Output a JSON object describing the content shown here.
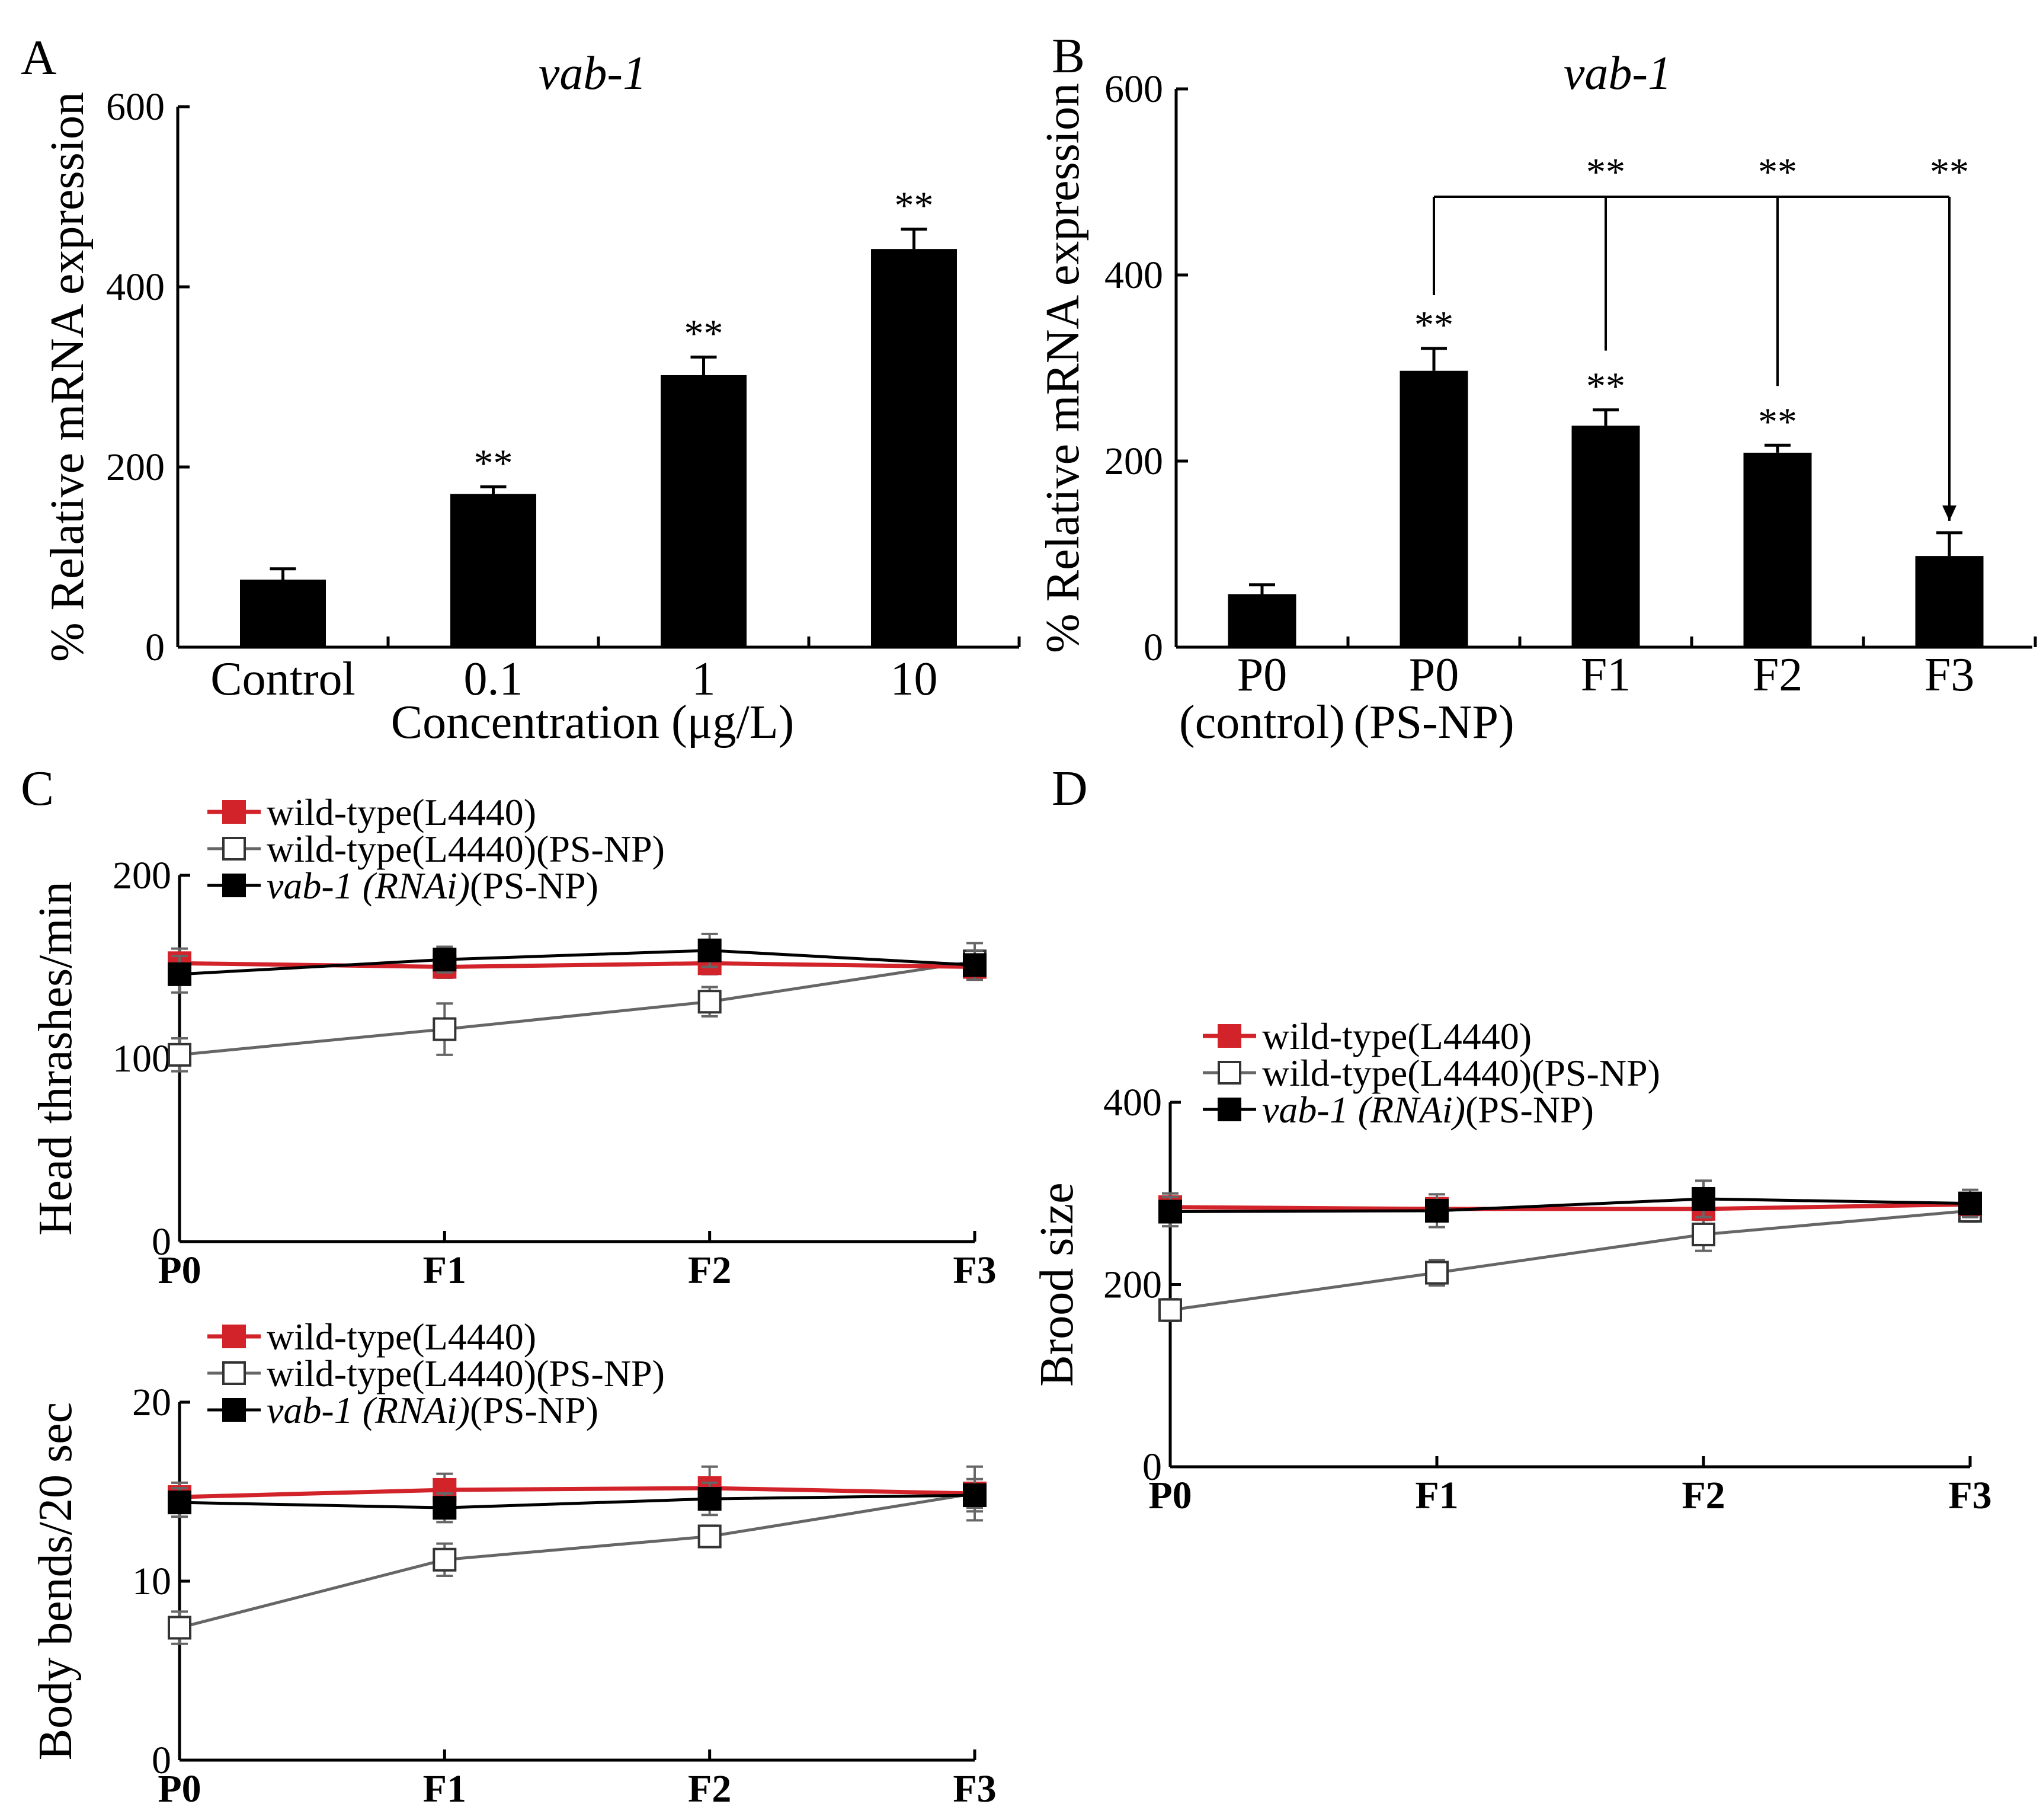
{
  "figure": {
    "panel_labels": [
      "A",
      "B",
      "C",
      "D"
    ]
  },
  "colors": {
    "wild_type": "#d2232a",
    "black": "#000000",
    "gray_line": "#666666",
    "open_fill": "#ffffff"
  },
  "chart_data": [
    {
      "id": "A",
      "type": "bar",
      "title": "vab-1",
      "xlabel": "Concentration (μg/L)",
      "ylabel": "% Relative mRNA expression",
      "categories": [
        "Control",
        "0.1",
        "1",
        "10"
      ],
      "values": [
        75,
        170,
        302,
        442
      ],
      "errors": [
        12,
        8,
        20,
        22
      ],
      "significance": [
        "",
        "**",
        "**",
        "**"
      ],
      "ylim": [
        0,
        600
      ],
      "yticks": [
        0,
        200,
        400,
        600
      ]
    },
    {
      "id": "B",
      "type": "bar",
      "title": "vab-1",
      "ylabel": "% Relative mRNA expression",
      "categories": [
        "P0\n(control)",
        "P0\n(PS-NP)",
        "F1",
        "F2",
        "F3"
      ],
      "category_lines": [
        [
          "P0",
          "(control)"
        ],
        [
          "P0",
          "(PS-NP)"
        ],
        [
          "F1"
        ],
        [
          "F2"
        ],
        [
          "F3"
        ]
      ],
      "values": [
        57,
        297,
        238,
        209,
        98
      ],
      "errors": [
        10,
        24,
        17,
        8,
        25
      ],
      "significance": [
        "",
        "**",
        "**",
        "**",
        ""
      ],
      "bracket_significance": [
        "**",
        "**",
        "**"
      ],
      "ylim": [
        0,
        600
      ],
      "yticks": [
        0,
        200,
        400,
        600
      ]
    },
    {
      "id": "C-top",
      "type": "line",
      "ylabel": "Head thrashes/min",
      "x": [
        "P0",
        "F1",
        "F2",
        "F3"
      ],
      "ylim": [
        0,
        200
      ],
      "yticks": [
        0,
        100,
        200
      ],
      "legend": [
        "wild-type(L4440)",
        "wild-type(L4440)(PS-NP)",
        "vab-1 (RNAi)(PS-NP)"
      ],
      "legend_italic_prefix": "vab-1 (RNAi)",
      "legend_suffix": "(PS-NP)",
      "series": [
        {
          "name": "wild-type(L4440)",
          "values": [
            152,
            150,
            152,
            150
          ],
          "errors": [
            8,
            6,
            6,
            6
          ]
        },
        {
          "name": "wild-type(L4440)(PS-NP)",
          "values": [
            102,
            116,
            131,
            153
          ],
          "errors": [
            9,
            14,
            8,
            10
          ]
        },
        {
          "name": "vab-1 (RNAi)(PS-NP)",
          "values": [
            146,
            154,
            159,
            151
          ],
          "errors": [
            10,
            7,
            9,
            8
          ]
        }
      ]
    },
    {
      "id": "C-bottom",
      "type": "line",
      "ylabel": "Body bends/20 sec",
      "x": [
        "P0",
        "F1",
        "F2",
        "F3"
      ],
      "ylim": [
        0,
        20
      ],
      "yticks": [
        0,
        10,
        20
      ],
      "legend": [
        "wild-type(L4440)",
        "wild-type(L4440)(PS-NP)",
        "vab-1 (RNAi)(PS-NP)"
      ],
      "legend_italic_prefix": "vab-1 (RNAi)",
      "legend_suffix": "(PS-NP)",
      "series": [
        {
          "name": "wild-type(L4440)",
          "values": [
            14.7,
            15.1,
            15.2,
            14.9
          ],
          "errors": [
            0.8,
            0.9,
            1.2,
            0.8
          ]
        },
        {
          "name": "wild-type(L4440)(PS-NP)",
          "values": [
            7.4,
            11.2,
            12.5,
            14.9
          ],
          "errors": [
            0.9,
            0.9,
            0.6,
            1.5
          ]
        },
        {
          "name": "vab-1 (RNAi)(PS-NP)",
          "values": [
            14.4,
            14.1,
            14.6,
            14.8
          ],
          "errors": [
            0.8,
            0.8,
            0.9,
            0.9
          ]
        }
      ]
    },
    {
      "id": "D",
      "type": "line",
      "ylabel": "Brood size",
      "x": [
        "P0",
        "F1",
        "F2",
        "F3"
      ],
      "ylim": [
        0,
        400
      ],
      "yticks": [
        0,
        200,
        400
      ],
      "legend": [
        "wild-type(L4440)",
        "wild-type(L4440)(PS-NP)",
        "vab-1 (RNAi)(PS-NP)"
      ],
      "legend_italic_prefix": "vab-1 (RNAi)",
      "legend_suffix": "(PS-NP)",
      "series": [
        {
          "name": "wild-type(L4440)",
          "values": [
            285,
            283,
            283,
            288
          ],
          "errors": [
            15,
            12,
            12,
            12
          ]
        },
        {
          "name": "wild-type(L4440)(PS-NP)",
          "values": [
            172,
            213,
            255,
            281
          ],
          "errors": [
            12,
            14,
            18,
            12
          ]
        },
        {
          "name": "vab-1 (RNAi)(PS-NP)",
          "values": [
            280,
            281,
            294,
            289
          ],
          "errors": [
            16,
            18,
            20,
            15
          ]
        }
      ]
    }
  ]
}
